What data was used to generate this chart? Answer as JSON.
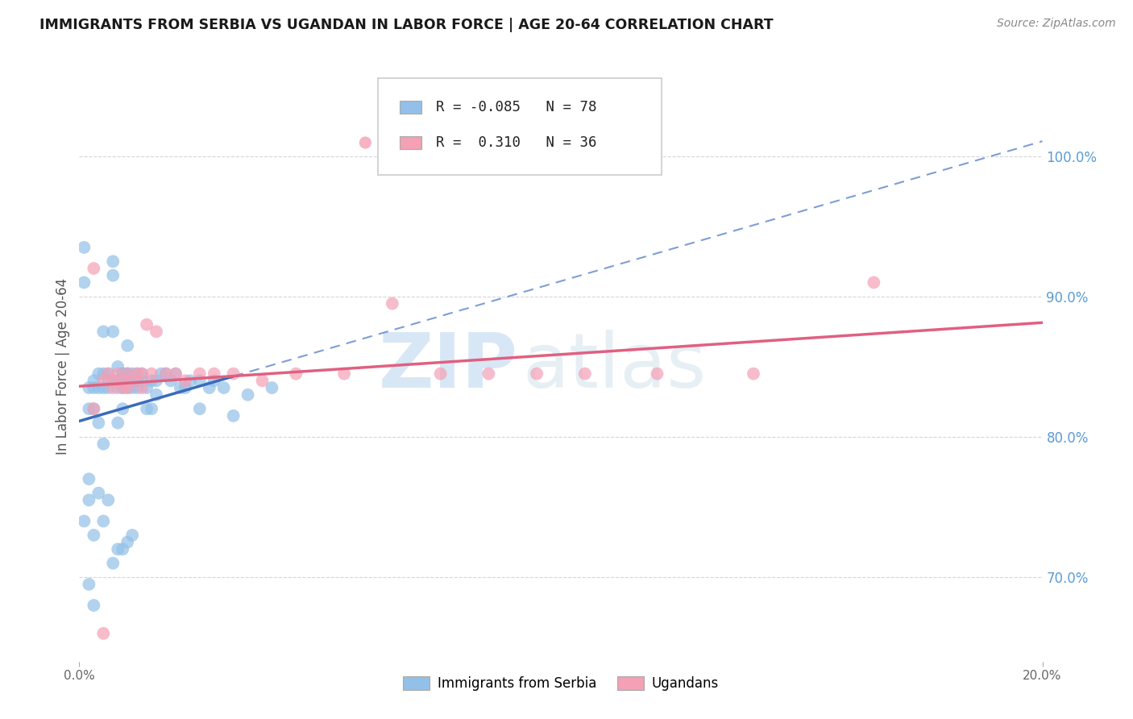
{
  "title": "IMMIGRANTS FROM SERBIA VS UGANDAN IN LABOR FORCE | AGE 20-64 CORRELATION CHART",
  "source": "Source: ZipAtlas.com",
  "ylabel": "In Labor Force | Age 20-64",
  "serbia_R": -0.085,
  "serbia_N": 78,
  "uganda_R": 0.31,
  "uganda_N": 36,
  "serbia_color": "#92c0e8",
  "uganda_color": "#f4a0b5",
  "serbia_line_color": "#3a6bbb",
  "uganda_line_color": "#e06080",
  "right_axis_color": "#5b9bd5",
  "serbia_x": [
    0.001,
    0.001,
    0.001,
    0.002,
    0.002,
    0.002,
    0.002,
    0.003,
    0.003,
    0.003,
    0.003,
    0.004,
    0.004,
    0.004,
    0.005,
    0.005,
    0.005,
    0.005,
    0.006,
    0.006,
    0.006,
    0.007,
    0.007,
    0.007,
    0.007,
    0.008,
    0.008,
    0.008,
    0.008,
    0.009,
    0.009,
    0.009,
    0.009,
    0.009,
    0.01,
    0.01,
    0.01,
    0.01,
    0.01,
    0.011,
    0.011,
    0.011,
    0.012,
    0.012,
    0.012,
    0.013,
    0.013,
    0.014,
    0.014,
    0.015,
    0.015,
    0.016,
    0.016,
    0.017,
    0.018,
    0.019,
    0.02,
    0.021,
    0.022,
    0.023,
    0.025,
    0.025,
    0.027,
    0.028,
    0.03,
    0.032,
    0.035,
    0.04,
    0.002,
    0.003,
    0.004,
    0.005,
    0.006,
    0.007,
    0.008,
    0.009,
    0.01,
    0.011
  ],
  "serbia_y": [
    0.935,
    0.91,
    0.74,
    0.835,
    0.82,
    0.755,
    0.695,
    0.84,
    0.835,
    0.82,
    0.73,
    0.845,
    0.835,
    0.81,
    0.875,
    0.845,
    0.835,
    0.795,
    0.845,
    0.84,
    0.835,
    0.925,
    0.915,
    0.84,
    0.875,
    0.85,
    0.84,
    0.835,
    0.81,
    0.845,
    0.845,
    0.84,
    0.835,
    0.82,
    0.845,
    0.845,
    0.84,
    0.835,
    0.865,
    0.84,
    0.845,
    0.835,
    0.845,
    0.84,
    0.835,
    0.845,
    0.84,
    0.835,
    0.82,
    0.84,
    0.82,
    0.84,
    0.83,
    0.845,
    0.845,
    0.84,
    0.845,
    0.835,
    0.835,
    0.84,
    0.82,
    0.84,
    0.835,
    0.84,
    0.835,
    0.815,
    0.83,
    0.835,
    0.77,
    0.68,
    0.76,
    0.74,
    0.755,
    0.71,
    0.72,
    0.72,
    0.725,
    0.73
  ],
  "uganda_x": [
    0.003,
    0.005,
    0.006,
    0.007,
    0.007,
    0.008,
    0.009,
    0.009,
    0.01,
    0.01,
    0.011,
    0.012,
    0.013,
    0.013,
    0.014,
    0.015,
    0.016,
    0.018,
    0.02,
    0.022,
    0.025,
    0.028,
    0.032,
    0.038,
    0.045,
    0.055,
    0.065,
    0.075,
    0.085,
    0.095,
    0.105,
    0.12,
    0.14,
    0.165,
    0.003,
    0.005
  ],
  "uganda_y": [
    0.92,
    0.84,
    0.845,
    0.84,
    0.835,
    0.845,
    0.84,
    0.835,
    0.845,
    0.835,
    0.84,
    0.845,
    0.845,
    0.835,
    0.88,
    0.845,
    0.875,
    0.845,
    0.845,
    0.84,
    0.845,
    0.845,
    0.845,
    0.84,
    0.845,
    0.845,
    0.895,
    0.845,
    0.845,
    0.845,
    0.845,
    0.845,
    0.845,
    0.91,
    0.82,
    0.66
  ],
  "xlim_data": [
    0.0,
    0.2
  ],
  "ylim_data": [
    0.64,
    1.06
  ],
  "yticks": [
    0.7,
    0.8,
    0.9,
    1.0
  ],
  "ytick_labels": [
    "70.0%",
    "80.0%",
    "90.0%",
    "100.0%"
  ],
  "xtick_positions": [
    0.0,
    0.2
  ],
  "xtick_labels": [
    "0.0%",
    "20.0%"
  ],
  "background_color": "#ffffff",
  "grid_color": "#cccccc",
  "watermark_zip": "ZIP",
  "watermark_atlas": "atlas"
}
